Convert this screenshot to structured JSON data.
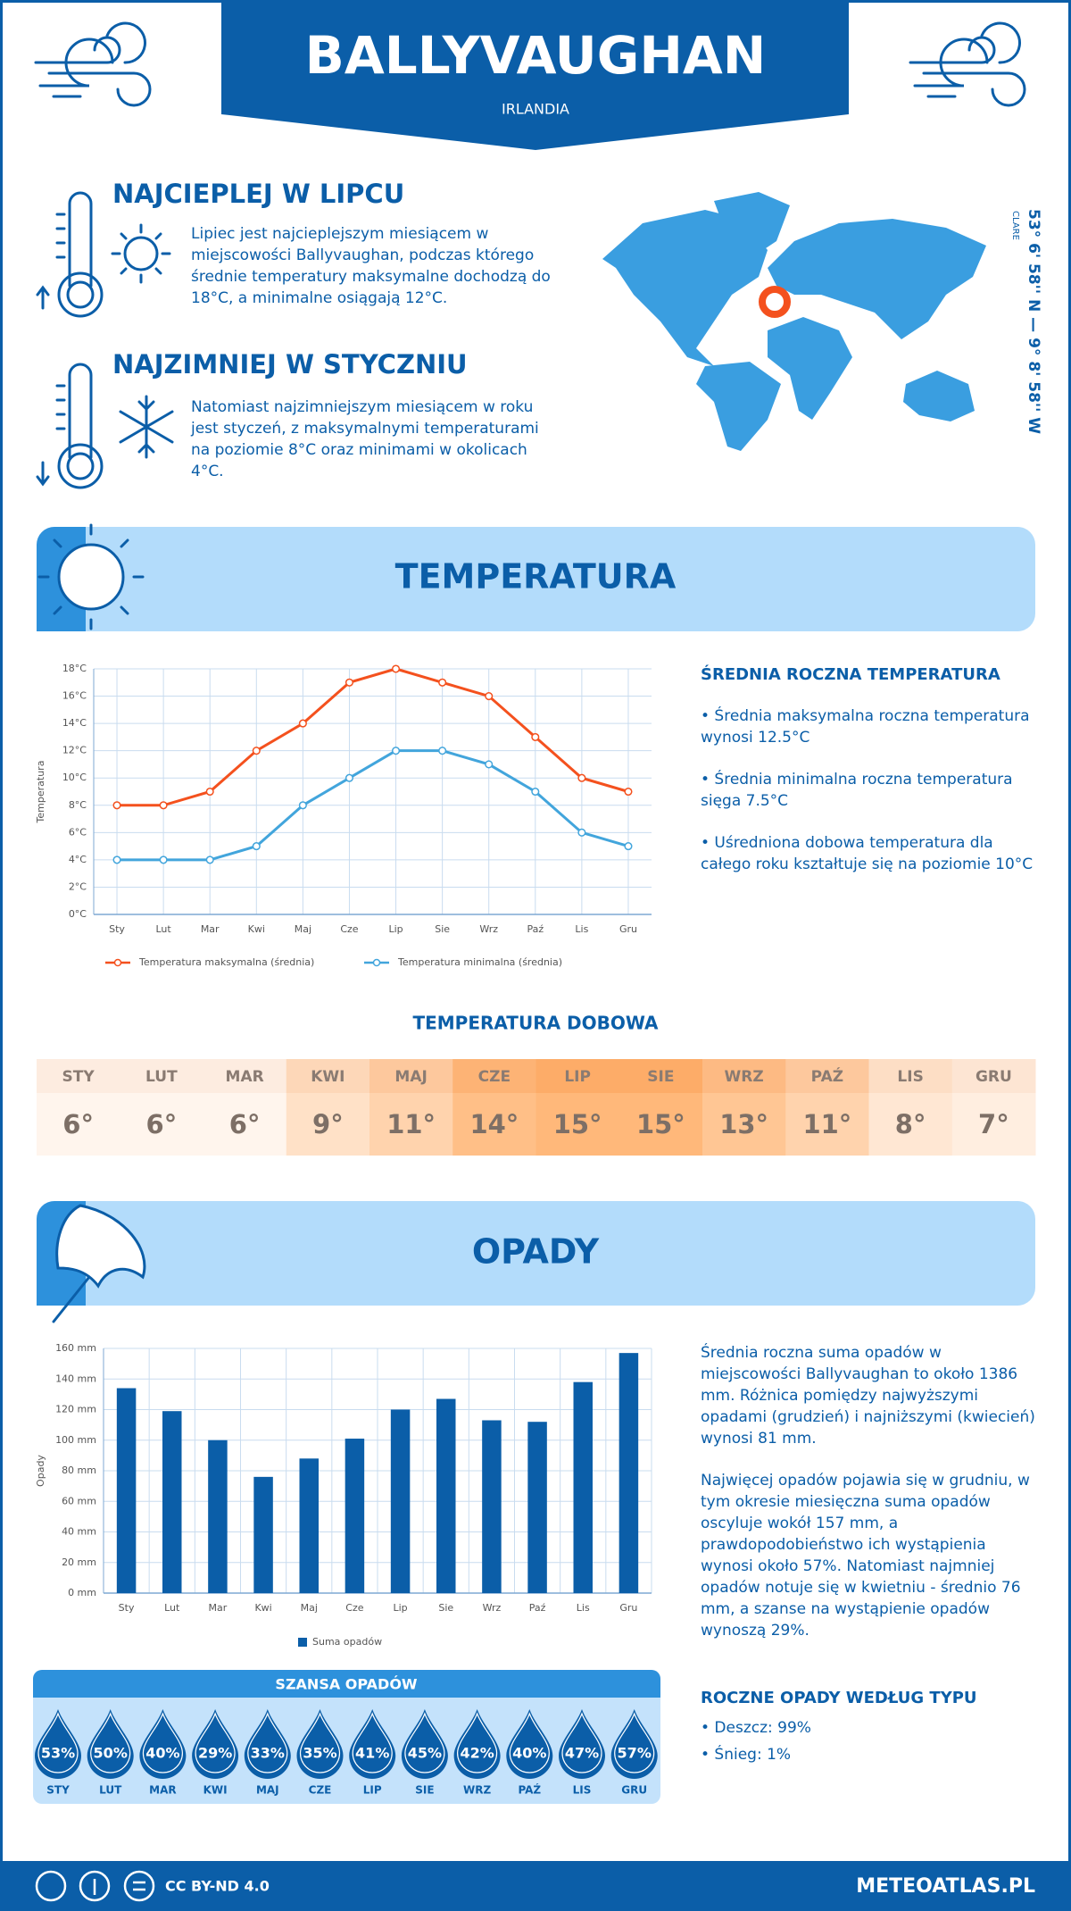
{
  "header": {
    "title": "BALLYVAUGHAN",
    "subtitle": "IRLANDIA"
  },
  "warmest": {
    "title": "NAJCIEPLEJ W LIPCU",
    "text": "Lipiec jest najcieplejszym miesiącem w miejscowości Ballyvaughan, podczas którego średnie temperatury maksymalne dochodzą do 18°C, a minimalne osiągają 12°C."
  },
  "coldest": {
    "title": "NAJZIMNIEJ W STYCZNIU",
    "text": "Natomiast najzimniejszym miesiącem w roku jest styczeń, z maksymalnymi temperaturami na poziomie 8°C oraz minimami w okolicach 4°C."
  },
  "location": {
    "coordinates": "53° 6' 58'' N — 9° 8' 58'' W",
    "region": "CLARE"
  },
  "temperature_section": {
    "title": "TEMPERATURA"
  },
  "chart_data": [
    {
      "type": "line",
      "y_label": "Temperatura",
      "categories": [
        "Sty",
        "Lut",
        "Mar",
        "Kwi",
        "Maj",
        "Cze",
        "Lip",
        "Sie",
        "Wrz",
        "Paź",
        "Lis",
        "Gru"
      ],
      "series": [
        {
          "name": "Temperatura maksymalna (średnia)",
          "color": "#f4511e",
          "values": [
            8,
            8,
            9,
            12,
            14,
            17,
            18,
            17,
            16,
            13,
            10,
            9
          ]
        },
        {
          "name": "Temperatura minimalna (średnia)",
          "color": "#42a5dc",
          "values": [
            4,
            4,
            4,
            5,
            8,
            10,
            12,
            12,
            11,
            9,
            6,
            5
          ]
        }
      ],
      "ylim": [
        0,
        18
      ],
      "yticks": [
        {
          "value": 0,
          "label": "0°C"
        },
        {
          "value": 2,
          "label": "2°C"
        },
        {
          "value": 4,
          "label": "4°C"
        },
        {
          "value": 6,
          "label": "6°C"
        },
        {
          "value": 8,
          "label": "8°C"
        },
        {
          "value": 10,
          "label": "10°C"
        },
        {
          "value": 12,
          "label": "12°C"
        },
        {
          "value": 14,
          "label": "14°C"
        },
        {
          "value": 16,
          "label": "16°C"
        },
        {
          "value": 18,
          "label": "18°C"
        }
      ],
      "grid": true
    },
    {
      "type": "bar",
      "y_label": "Opady",
      "categories": [
        "Sty",
        "Lut",
        "Mar",
        "Kwi",
        "Maj",
        "Cze",
        "Lip",
        "Sie",
        "Wrz",
        "Paź",
        "Lis",
        "Gru"
      ],
      "series": [
        {
          "name": "Suma opadów",
          "color": "#0b5ea8",
          "values": [
            134,
            119,
            100,
            76,
            88,
            101,
            120,
            127,
            113,
            112,
            138,
            157
          ]
        }
      ],
      "ylim": [
        0,
        160
      ],
      "yticks": [
        {
          "value": 0,
          "label": "0 mm"
        },
        {
          "value": 20,
          "label": "20 mm"
        },
        {
          "value": 40,
          "label": "40 mm"
        },
        {
          "value": 60,
          "label": "60 mm"
        },
        {
          "value": 80,
          "label": "80 mm"
        },
        {
          "value": 100,
          "label": "100 mm"
        },
        {
          "value": 120,
          "label": "120 mm"
        },
        {
          "value": 140,
          "label": "140 mm"
        },
        {
          "value": 160,
          "label": "160 mm"
        }
      ],
      "grid": true
    }
  ],
  "temperature_summary": {
    "title": "ŚREDNIA ROCZNA TEMPERATURA",
    "items": [
      "• Średnia maksymalna roczna temperatura wynosi 12.5°C",
      "• Średnia minimalna roczna temperatura sięga 7.5°C",
      "• Uśredniona dobowa temperatura dla całego roku kształtuje się na poziomie 10°C"
    ]
  },
  "daily_temperature": {
    "title": "TEMPERATURA DOBOWA",
    "months": [
      "STY",
      "LUT",
      "MAR",
      "KWI",
      "MAJ",
      "CZE",
      "LIP",
      "SIE",
      "WRZ",
      "PAŹ",
      "LIS",
      "GRU"
    ],
    "values": [
      6,
      6,
      6,
      9,
      11,
      14,
      15,
      15,
      13,
      11,
      8,
      7
    ],
    "value_labels": [
      "6°",
      "6°",
      "6°",
      "9°",
      "11°",
      "14°",
      "15°",
      "15°",
      "13°",
      "11°",
      "8°",
      "7°"
    ]
  },
  "precipitation_section": {
    "title": "OPADY"
  },
  "precipitation_summary": {
    "paragraphs": [
      "Średnia roczna suma opadów w miejscowości Ballyvaughan to około 1386 mm. Różnica pomiędzy najwyższymi opadami (grudzień) i najniższymi (kwiecień) wynosi 81 mm.",
      "Najwięcej opadów pojawia się w grudniu, w tym okresie miesięczna suma opadów oscyluje wokół 157 mm, a prawdopodobieństwo ich wystąpienia wynosi około 57%. Natomiast najmniej opadów notuje się w kwietniu - średnio 76 mm, a szanse na wystąpienie opadów wynoszą 29%."
    ]
  },
  "precipitation_chance": {
    "title": "SZANSA OPADÓW",
    "months": [
      "STY",
      "LUT",
      "MAR",
      "KWI",
      "MAJ",
      "CZE",
      "LIP",
      "SIE",
      "WRZ",
      "PAŹ",
      "LIS",
      "GRU"
    ],
    "values": [
      53,
      50,
      40,
      29,
      33,
      35,
      41,
      45,
      42,
      40,
      47,
      57
    ],
    "value_labels": [
      "53%",
      "50%",
      "40%",
      "29%",
      "33%",
      "35%",
      "41%",
      "45%",
      "42%",
      "40%",
      "47%",
      "57%"
    ]
  },
  "precipitation_type": {
    "title": "ROCZNE OPADY WEDŁUG TYPU",
    "items": [
      "• Deszcz: 99%",
      "• Śnieg: 1%"
    ]
  },
  "footer": {
    "license": "CC BY-ND 4.0",
    "site": "METEOATLAS.PL"
  }
}
